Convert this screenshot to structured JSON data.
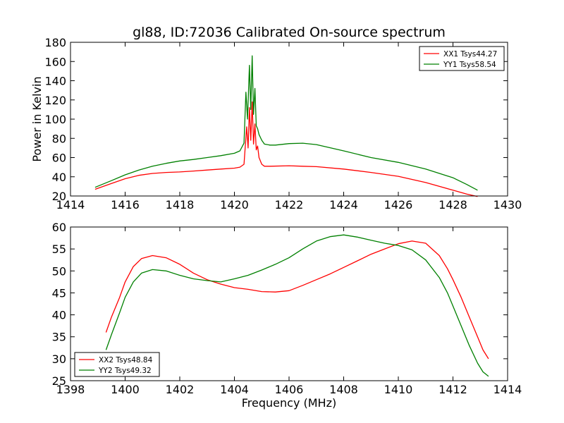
{
  "chart_data": [
    {
      "type": "line",
      "title": "gl88, ID:72036 Calibrated On-source spectrum",
      "xlabel": "",
      "ylabel": "Power in Kelvin",
      "xlim": [
        1414,
        1430
      ],
      "ylim": [
        20,
        180
      ],
      "xticks": [
        "1414",
        "1416",
        "1418",
        "1420",
        "1422",
        "1424",
        "1426",
        "1428",
        "1430"
      ],
      "yticks": [
        "20",
        "40",
        "60",
        "80",
        "100",
        "120",
        "140",
        "160",
        "180"
      ],
      "legend_position": "top-right",
      "series": [
        {
          "name": "XX1 Tsys44.27",
          "color": "#ff0000",
          "x": [
            1414.9,
            1415.5,
            1416.0,
            1416.5,
            1417.0,
            1417.5,
            1418.0,
            1418.5,
            1419.0,
            1419.5,
            1420.0,
            1420.2,
            1420.35,
            1420.45,
            1420.5,
            1420.55,
            1420.6,
            1420.65,
            1420.7,
            1420.75,
            1420.8,
            1420.85,
            1420.9,
            1421.0,
            1421.1,
            1421.3,
            1422.0,
            1422.5,
            1423.0,
            1424.0,
            1425.0,
            1426.0,
            1427.0,
            1428.0,
            1428.5,
            1428.9
          ],
          "y": [
            27,
            33,
            38,
            41.5,
            43.5,
            44.5,
            45,
            46,
            47,
            48,
            49,
            50,
            53,
            92,
            70,
            112,
            78,
            118,
            74,
            95,
            68,
            72,
            60,
            53,
            51,
            51,
            51.5,
            51,
            50.5,
            48,
            44.5,
            40.5,
            34,
            26,
            22,
            19.5
          ]
        },
        {
          "name": "YY1 Tsys58.54",
          "color": "#008000",
          "x": [
            1414.9,
            1415.5,
            1416.0,
            1416.5,
            1417.0,
            1417.5,
            1418.0,
            1418.5,
            1419.0,
            1419.5,
            1420.0,
            1420.2,
            1420.35,
            1420.42,
            1420.48,
            1420.55,
            1420.6,
            1420.65,
            1420.7,
            1420.75,
            1420.8,
            1420.85,
            1420.9,
            1421.0,
            1421.1,
            1421.3,
            1421.5,
            1422.0,
            1422.5,
            1423.0,
            1424.0,
            1425.0,
            1426.0,
            1427.0,
            1428.0,
            1428.5,
            1428.9
          ],
          "y": [
            29,
            36,
            42,
            47,
            51,
            54,
            56.5,
            58,
            60,
            62,
            64.5,
            67,
            75,
            128,
            100,
            156,
            110,
            166,
            105,
            132,
            93,
            90,
            84,
            78,
            74,
            73,
            73,
            74.5,
            75,
            73.5,
            67,
            60,
            55,
            48,
            39,
            32,
            26
          ]
        }
      ]
    },
    {
      "type": "line",
      "title": "",
      "xlabel": "Frequency (MHz)",
      "ylabel": "",
      "xlim": [
        1398,
        1414
      ],
      "ylim": [
        25,
        60
      ],
      "xticks": [
        "1398",
        "1400",
        "1402",
        "1404",
        "1406",
        "1408",
        "1410",
        "1412",
        "1414"
      ],
      "yticks": [
        "25",
        "30",
        "35",
        "40",
        "45",
        "50",
        "55",
        "60"
      ],
      "legend_position": "bottom-left",
      "series": [
        {
          "name": "XX2 Tsys48.84",
          "color": "#ff0000",
          "x": [
            1399.3,
            1399.5,
            1399.8,
            1400.0,
            1400.3,
            1400.6,
            1401.0,
            1401.5,
            1402.0,
            1402.5,
            1403.0,
            1403.5,
            1404.0,
            1404.5,
            1405.0,
            1405.5,
            1406.0,
            1406.5,
            1407.0,
            1407.5,
            1408.0,
            1408.5,
            1409.0,
            1409.5,
            1410.0,
            1410.5,
            1411.0,
            1411.5,
            1411.8,
            1412.0,
            1412.3,
            1412.6,
            1412.9,
            1413.1,
            1413.3
          ],
          "y": [
            36,
            39.5,
            44,
            47.5,
            51,
            52.8,
            53.5,
            53,
            51.5,
            49.5,
            48,
            47,
            46.2,
            45.8,
            45.3,
            45.2,
            45.5,
            46.7,
            48,
            49.3,
            50.8,
            52.3,
            53.8,
            55,
            56.2,
            56.8,
            56.3,
            53.5,
            50.5,
            48,
            44,
            39.5,
            35,
            32,
            30
          ]
        },
        {
          "name": "YY2 Tsys49.32",
          "color": "#008000",
          "x": [
            1399.3,
            1399.5,
            1399.8,
            1400.0,
            1400.3,
            1400.6,
            1401.0,
            1401.5,
            1402.0,
            1402.5,
            1403.0,
            1403.5,
            1404.0,
            1404.5,
            1405.0,
            1405.5,
            1406.0,
            1406.5,
            1407.0,
            1407.5,
            1408.0,
            1408.5,
            1409.0,
            1409.5,
            1410.0,
            1410.5,
            1411.0,
            1411.5,
            1411.8,
            1412.0,
            1412.3,
            1412.6,
            1412.9,
            1413.1,
            1413.3
          ],
          "y": [
            32,
            35.5,
            40.5,
            44,
            47.5,
            49.5,
            50.3,
            50,
            49,
            48.2,
            47.8,
            47.5,
            48.2,
            49,
            50.2,
            51.5,
            53,
            55,
            56.8,
            57.8,
            58.2,
            57.7,
            57,
            56.3,
            55.8,
            54.8,
            52.5,
            48.5,
            45,
            42,
            37.5,
            33,
            29,
            27,
            26
          ]
        }
      ]
    }
  ]
}
